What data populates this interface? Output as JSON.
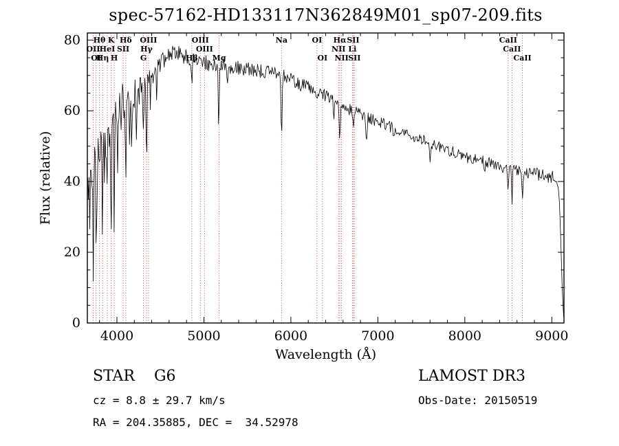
{
  "page": {
    "title": "spec-57162-HD133117N362849M01_sp07-209.fits",
    "footer": {
      "class_label": "STAR    G6",
      "survey": "LAMOST DR3",
      "cz": "cz = 8.8 ± 29.7 km/s",
      "obs_date": "Obs-Date: 20150519",
      "ra_dec": "RA = 204.35885, DEC =  34.52978"
    }
  },
  "chart_data": {
    "type": "line",
    "title": "spec-57162-HD133117N362849M01_sp07-209.fits",
    "xlabel": "Wavelength (Å)",
    "ylabel": "Flux (relative)",
    "xlim": [
      3660,
      9140
    ],
    "ylim": [
      0,
      82
    ],
    "x_ticks": [
      4000,
      5000,
      6000,
      7000,
      8000,
      9000
    ],
    "y_ticks": [
      0,
      20,
      40,
      60,
      80
    ],
    "x_minor_step": 200,
    "y_minor_step": 5,
    "grid": false,
    "line_color": "#000000",
    "marker_color": "#a93b3b",
    "label_color": "#8b2424",
    "spectral_lines": [
      {
        "wavelength": 3727,
        "label": "OII",
        "row": 2
      },
      {
        "wavelength": 3760,
        "label": "OI",
        "row": 3
      },
      {
        "wavelength": 3798,
        "label": "Hθ",
        "row": 1
      },
      {
        "wavelength": 3835,
        "label": "Hη",
        "row": 3
      },
      {
        "wavelength": 3889,
        "label": "HeI",
        "row": 2
      },
      {
        "wavelength": 3934,
        "label": "K",
        "row": 1
      },
      {
        "wavelength": 3969,
        "label": "H",
        "row": 3
      },
      {
        "wavelength": 4072,
        "label": "SII",
        "row": 2
      },
      {
        "wavelength": 4102,
        "label": "Hδ",
        "row": 1
      },
      {
        "wavelength": 4305,
        "label": "G",
        "row": 3
      },
      {
        "wavelength": 4340,
        "label": "Hγ",
        "row": 2
      },
      {
        "wavelength": 4363,
        "label": "OIII",
        "row": 1
      },
      {
        "wavelength": 4861,
        "label": "Hβ",
        "row": 3
      },
      {
        "wavelength": 4959,
        "label": "OIII",
        "row": 1
      },
      {
        "wavelength": 5007,
        "label": "OIII",
        "row": 2
      },
      {
        "wavelength": 5175,
        "label": "Mg",
        "row": 3
      },
      {
        "wavelength": 5893,
        "label": "Na",
        "row": 1
      },
      {
        "wavelength": 6300,
        "label": "OI",
        "row": 1
      },
      {
        "wavelength": 6363,
        "label": "OI",
        "row": 3
      },
      {
        "wavelength": 6548,
        "label": "NII",
        "row": 2
      },
      {
        "wavelength": 6563,
        "label": "Hα",
        "row": 1
      },
      {
        "wavelength": 6583,
        "label": "NII",
        "row": 3
      },
      {
        "wavelength": 6707,
        "label": "Li",
        "row": 2
      },
      {
        "wavelength": 6716,
        "label": "SII",
        "row": 1
      },
      {
        "wavelength": 6731,
        "label": "SII",
        "row": 3
      },
      {
        "wavelength": 8498,
        "label": "CaII",
        "row": 1
      },
      {
        "wavelength": 8542,
        "label": "CaII",
        "row": 2
      },
      {
        "wavelength": 8662,
        "label": "CaII",
        "row": 3
      }
    ],
    "spectrum": {
      "sample_step": 8,
      "seed": 57162,
      "continuum_points": [
        [
          3660,
          40
        ],
        [
          3700,
          46
        ],
        [
          3750,
          45
        ],
        [
          3800,
          50
        ],
        [
          3850,
          52
        ],
        [
          3900,
          55
        ],
        [
          3950,
          57
        ],
        [
          4000,
          60
        ],
        [
          4060,
          62
        ],
        [
          4120,
          64
        ],
        [
          4180,
          65
        ],
        [
          4240,
          66
        ],
        [
          4300,
          67
        ],
        [
          4360,
          69
        ],
        [
          4420,
          71
        ],
        [
          4480,
          73
        ],
        [
          4550,
          75
        ],
        [
          4650,
          76.5
        ],
        [
          4750,
          76
        ],
        [
          4850,
          74.5
        ],
        [
          4950,
          74
        ],
        [
          5050,
          73.5
        ],
        [
          5150,
          73
        ],
        [
          5250,
          72.5
        ],
        [
          5400,
          72
        ],
        [
          5550,
          71.5
        ],
        [
          5700,
          71
        ],
        [
          5850,
          70.5
        ],
        [
          5950,
          69.5
        ],
        [
          6050,
          68
        ],
        [
          6150,
          67
        ],
        [
          6250,
          66
        ],
        [
          6350,
          65
        ],
        [
          6450,
          63.5
        ],
        [
          6550,
          62
        ],
        [
          6650,
          60.5
        ],
        [
          6750,
          59.5
        ],
        [
          6850,
          58.5
        ],
        [
          6950,
          57.5
        ],
        [
          7050,
          56.5
        ],
        [
          7150,
          55.5
        ],
        [
          7250,
          54.5
        ],
        [
          7350,
          53.5
        ],
        [
          7450,
          52.5
        ],
        [
          7550,
          51.5
        ],
        [
          7650,
          50.5
        ],
        [
          7750,
          49.5
        ],
        [
          7850,
          48.5
        ],
        [
          7950,
          47.5
        ],
        [
          8050,
          46.5
        ],
        [
          8150,
          46
        ],
        [
          8250,
          45.5
        ],
        [
          8350,
          44.5
        ],
        [
          8450,
          44
        ],
        [
          8550,
          43.5
        ],
        [
          8650,
          43
        ],
        [
          8750,
          42.5
        ],
        [
          8850,
          42
        ],
        [
          8950,
          41.5
        ],
        [
          9040,
          41
        ],
        [
          9080,
          38
        ],
        [
          9105,
          22
        ],
        [
          9120,
          8
        ],
        [
          9136,
          1
        ]
      ],
      "noise_amp": [
        [
          3660,
          8
        ],
        [
          3800,
          7.5
        ],
        [
          3950,
          7
        ],
        [
          4100,
          6
        ],
        [
          4250,
          4.5
        ],
        [
          4400,
          3.2
        ],
        [
          4550,
          2.6
        ],
        [
          4800,
          2.3
        ],
        [
          5200,
          2.1
        ],
        [
          5600,
          2
        ],
        [
          6000,
          1.9
        ],
        [
          6500,
          1.7
        ],
        [
          7000,
          1.6
        ],
        [
          7500,
          1.6
        ],
        [
          8000,
          1.6
        ],
        [
          8500,
          1.7
        ],
        [
          9000,
          1.8
        ],
        [
          9100,
          1.5
        ]
      ],
      "absorption_lines": [
        [
          3727,
          30,
          5
        ],
        [
          3765,
          28,
          5
        ],
        [
          3835,
          17,
          4
        ],
        [
          3890,
          20,
          4
        ],
        [
          3934,
          30,
          5
        ],
        [
          3970,
          30,
          5
        ],
        [
          4010,
          16,
          4
        ],
        [
          4045,
          12,
          4
        ],
        [
          4102,
          26,
          5
        ],
        [
          4144,
          10,
          4
        ],
        [
          4170,
          14,
          4
        ],
        [
          4227,
          10,
          4
        ],
        [
          4305,
          13,
          5
        ],
        [
          4340,
          17,
          5
        ],
        [
          4384,
          10,
          4
        ],
        [
          4455,
          8,
          4
        ],
        [
          4861,
          10,
          5
        ],
        [
          5170,
          20,
          5
        ],
        [
          5270,
          7,
          4
        ],
        [
          5893,
          19,
          6
        ],
        [
          6300,
          5,
          4
        ],
        [
          6494,
          5,
          4
        ],
        [
          6563,
          13,
          5
        ],
        [
          6717,
          4,
          4
        ],
        [
          6870,
          7,
          6
        ],
        [
          7180,
          4,
          6
        ],
        [
          7600,
          6,
          6
        ],
        [
          8230,
          4,
          6
        ],
        [
          8498,
          8,
          5
        ],
        [
          8542,
          9,
          5
        ],
        [
          8662,
          9,
          5
        ]
      ]
    }
  }
}
